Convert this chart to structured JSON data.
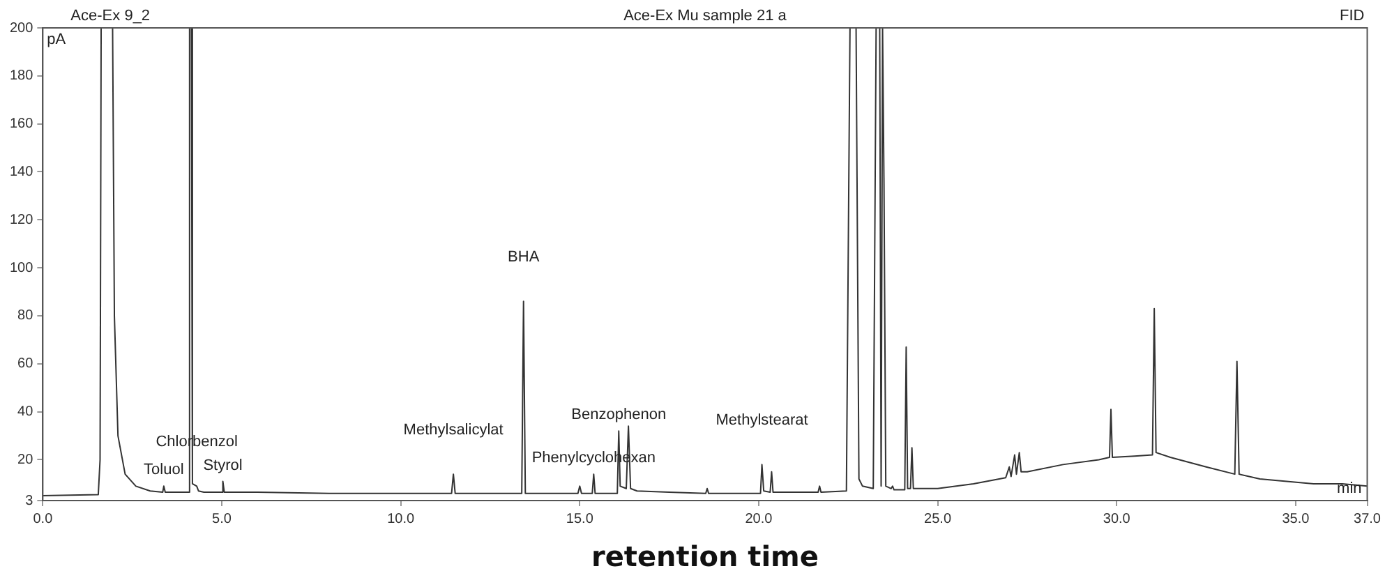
{
  "chart_data": {
    "type": "line",
    "title": "Ace-Ex Mu sample 21 a",
    "subtitle": "Ace-Ex 9_2",
    "xlabel": "retention time",
    "ylabel": "pA",
    "annotations": [
      "FID",
      "min",
      {
        "text": "Toluol",
        "x": 3.38,
        "y": 9
      },
      {
        "text": "Chlorbenzol",
        "x": 4.3,
        "y": 9
      },
      {
        "text": "Styrol",
        "x": 5.03,
        "y": 11
      },
      {
        "text": "Methylsalicylat",
        "x": 11.47,
        "y": 14
      },
      {
        "text": "Phenylcyclohexan",
        "x": 15.39,
        "y": 14
      },
      {
        "text": "BHA",
        "x": 13.43,
        "y": 86
      },
      {
        "text": "Benzophenon",
        "x": 16.09,
        "y": 32
      },
      {
        "text": "Methylstearat",
        "x": 20.09,
        "y": 18
      }
    ],
    "x": [
      0,
      1.55,
      1.6,
      1.63,
      1.95,
      2.0,
      2.1,
      2.3,
      2.6,
      3.0,
      3.35,
      3.38,
      3.42,
      4.07,
      4.1,
      4.15,
      4.18,
      4.3,
      4.35,
      4.5,
      5.0,
      5.03,
      5.07,
      6.0,
      8,
      11.42,
      11.47,
      11.52,
      13.38,
      13.43,
      13.48,
      14.95,
      15.0,
      15.05,
      15.35,
      15.39,
      15.43,
      16.05,
      16.09,
      16.13,
      16.3,
      16.36,
      16.42,
      16.6,
      17.5,
      18.52,
      18.56,
      18.6,
      20.05,
      20.09,
      20.14,
      20.32,
      20.36,
      20.4,
      21.66,
      21.7,
      21.74,
      22.45,
      22.55,
      22.72,
      22.8,
      22.9,
      23.2,
      23.28,
      23.38,
      23.42,
      23.46,
      23.5,
      23.55,
      23.7,
      23.74,
      23.78,
      24.08,
      24.12,
      24.16,
      24.24,
      24.28,
      24.32,
      25,
      26,
      26.9,
      27.0,
      27.05,
      27.15,
      27.2,
      27.28,
      27.33,
      27.5,
      28.5,
      29.5,
      29.8,
      29.84,
      29.88,
      30.5,
      31.0,
      31.05,
      31.1,
      31.5,
      32.5,
      33.3,
      33.36,
      33.42,
      34,
      35.5,
      36.3,
      37
    ],
    "series": [
      {
        "color": "#333333",
        "values": [
          5,
          5.5,
          20,
          200,
          200,
          80,
          30,
          14,
          9,
          7,
          6.5,
          9,
          6.5,
          6.5,
          200,
          200,
          10,
          9,
          7,
          6.5,
          6.5,
          11,
          6.5,
          6.5,
          6,
          6,
          14,
          6,
          6,
          86,
          6,
          6,
          9,
          6,
          6,
          14,
          6,
          6,
          32,
          9,
          8,
          34,
          8,
          7,
          6.5,
          6,
          8,
          6,
          6,
          18,
          7,
          6.5,
          15,
          6.5,
          6.5,
          9,
          6.5,
          7,
          200,
          200,
          12,
          9,
          8,
          200,
          200,
          9,
          200,
          135,
          9,
          8,
          9,
          7.5,
          7.5,
          67,
          8,
          8,
          25,
          8,
          8,
          10,
          12.5,
          17,
          13,
          22,
          14,
          23,
          15,
          15,
          18,
          20,
          21,
          41,
          21,
          21.5,
          22,
          83,
          23,
          21,
          17,
          14,
          61,
          14,
          12,
          10,
          10,
          9
        ]
      }
    ],
    "xlim": [
      0,
      37
    ],
    "xticks": [
      {
        "value": 0,
        "label": "0.0"
      },
      {
        "value": 5,
        "label": "5.0"
      },
      {
        "value": 10,
        "label": "10.0"
      },
      {
        "value": 15,
        "label": "15.0"
      },
      {
        "value": 20,
        "label": "20.0"
      },
      {
        "value": 25,
        "label": "25.0"
      },
      {
        "value": 30,
        "label": "30.0"
      },
      {
        "value": 35,
        "label": "35.0"
      },
      {
        "value": 37,
        "label": "37.0"
      }
    ],
    "ylim": [
      3,
      200
    ],
    "yticks": [
      3,
      20,
      40,
      60,
      80,
      100,
      120,
      140,
      160,
      180,
      200
    ],
    "grid": false,
    "legend": false,
    "marker": "none",
    "line_style": "solid"
  }
}
